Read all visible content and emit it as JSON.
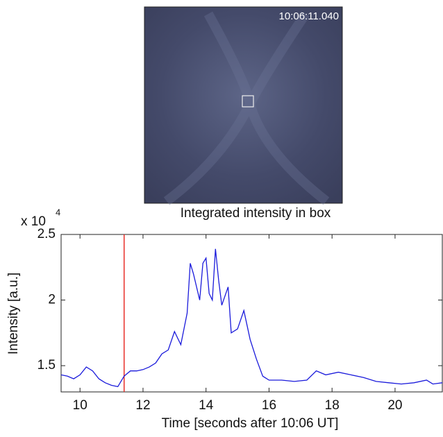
{
  "image_panel": {
    "timestamp": "10:06:11.040"
  },
  "chart_data": {
    "type": "line",
    "title": "Integrated intensity in box",
    "x_label": "Time [seconds after 10:06 UT]",
    "y_label": "Intensity [a.u.]",
    "y_multiplier": "x 10",
    "y_exponent": "4",
    "xlim": [
      9.4,
      21.5
    ],
    "xticks": [
      10,
      12,
      14,
      16,
      18,
      20
    ],
    "ylim": [
      13000,
      25000
    ],
    "yticks": [
      {
        "value": 15000,
        "label": "1.5"
      },
      {
        "value": 20000,
        "label": "2"
      },
      {
        "value": 25000,
        "label": "2.5"
      }
    ],
    "marker_line_x": 11.4,
    "marker_line_color": "#e8302a",
    "series": [
      {
        "color": "#1a1adb",
        "x": [
          9.4,
          9.6,
          9.8,
          10.0,
          10.2,
          10.4,
          10.6,
          10.8,
          11.0,
          11.2,
          11.4,
          11.6,
          11.8,
          12.0,
          12.2,
          12.4,
          12.6,
          12.8,
          13.0,
          13.2,
          13.4,
          13.5,
          13.6,
          13.8,
          13.9,
          14.0,
          14.1,
          14.2,
          14.3,
          14.4,
          14.5,
          14.7,
          14.8,
          15.0,
          15.2,
          15.4,
          15.6,
          15.8,
          16.0,
          16.4,
          16.8,
          17.2,
          17.5,
          17.8,
          18.2,
          18.6,
          19.0,
          19.4,
          19.8,
          20.2,
          20.6,
          21.0,
          21.2,
          21.5
        ],
        "values": [
          14300,
          14200,
          14000,
          14300,
          14900,
          14600,
          14000,
          13700,
          13500,
          13400,
          14200,
          14600,
          14600,
          14700,
          14900,
          15200,
          15900,
          16200,
          17600,
          16600,
          19000,
          22800,
          22000,
          20000,
          22800,
          23200,
          20500,
          20000,
          23900,
          21500,
          19600,
          21000,
          17500,
          17800,
          19200,
          17000,
          15500,
          14200,
          13900,
          13900,
          13800,
          13900,
          14600,
          14300,
          14500,
          14300,
          14100,
          13800,
          13700,
          13600,
          13700,
          13900,
          13600,
          13700
        ]
      }
    ]
  }
}
